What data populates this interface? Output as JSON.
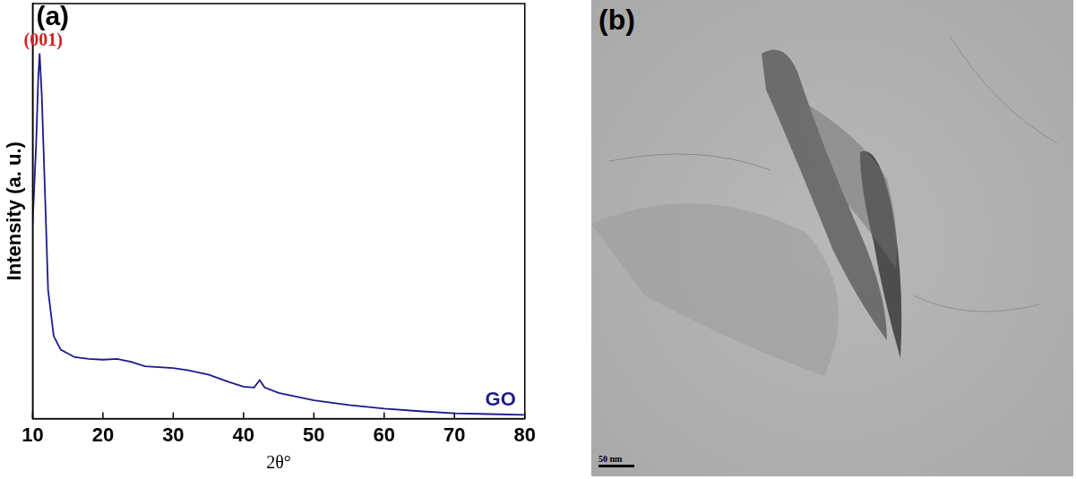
{
  "chart_data": {
    "type": "line",
    "x_label": "2θ°",
    "y_label": "Intensity (a. u.)",
    "series": [
      {
        "name": "GO",
        "color": "#1a1a8c",
        "x": [
          10,
          10.5,
          10.8,
          11.0,
          11.3,
          11.7,
          12.2,
          13,
          14,
          16,
          18,
          20,
          22,
          24,
          26,
          28,
          30,
          32,
          35,
          38,
          40,
          41.5,
          42.3,
          43,
          45,
          50,
          55,
          60,
          65,
          70,
          75,
          80
        ],
        "values": [
          46.9,
          66,
          82,
          88,
          78,
          57.5,
          31,
          19.9,
          16.6,
          14.8,
          14.4,
          14.2,
          14.4,
          13.7,
          12.6,
          12.4,
          12.2,
          11.7,
          10.6,
          8.8,
          7.7,
          7.5,
          9.3,
          7.5,
          6.2,
          4.4,
          3.3,
          2.4,
          1.8,
          1.3,
          1.1,
          0.9
        ]
      }
    ],
    "annotations": [
      {
        "text": "(001)",
        "x": 11.0,
        "y": 88
      }
    ],
    "xlim": [
      10,
      80
    ],
    "xticks": [
      10,
      20,
      30,
      40,
      50,
      60,
      70,
      80
    ],
    "ylim": [
      0,
      100
    ],
    "yticks": [],
    "tick_labels": "x",
    "grid": false,
    "legend": "lower right"
  },
  "panel_labels": [
    "(a)",
    "(b)"
  ],
  "image_panel": {
    "scale_bar": "50 nm"
  }
}
